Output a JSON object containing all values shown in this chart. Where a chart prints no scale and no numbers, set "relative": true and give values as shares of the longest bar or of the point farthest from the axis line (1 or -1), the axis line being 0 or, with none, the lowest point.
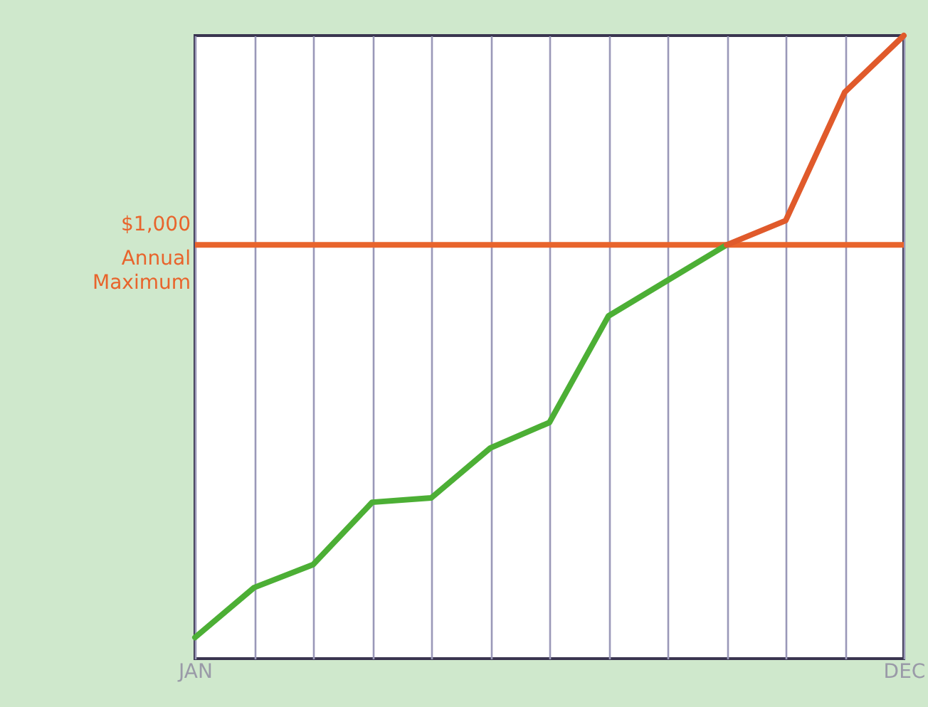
{
  "chart_data": {
    "type": "line",
    "relative": true,
    "grid": "x",
    "tick_labels": "x",
    "marker": "none",
    "line_style": "solid",
    "categories": [
      "JAN",
      null,
      null,
      null,
      null,
      null,
      null,
      null,
      null,
      null,
      null,
      null,
      "DEC"
    ],
    "series": [
      {
        "color": "#4caf35",
        "values": [
          0.034,
          0.114,
          0.151,
          0.251,
          0.258,
          0.338,
          0.379,
          0.55,
          0.607,
          0.664,
          null,
          null,
          null
        ]
      },
      {
        "color": "#e05a2b",
        "values": [
          null,
          null,
          null,
          null,
          null,
          null,
          null,
          null,
          null,
          0.664,
          0.703,
          0.909,
          1
        ]
      }
    ],
    "ref_lines": [
      {
        "axis": "y",
        "value": 0.664,
        "label": "$1,000 Annual Maximum",
        "color": "#e8642c",
        "line_style": "solid"
      }
    ]
  }
}
